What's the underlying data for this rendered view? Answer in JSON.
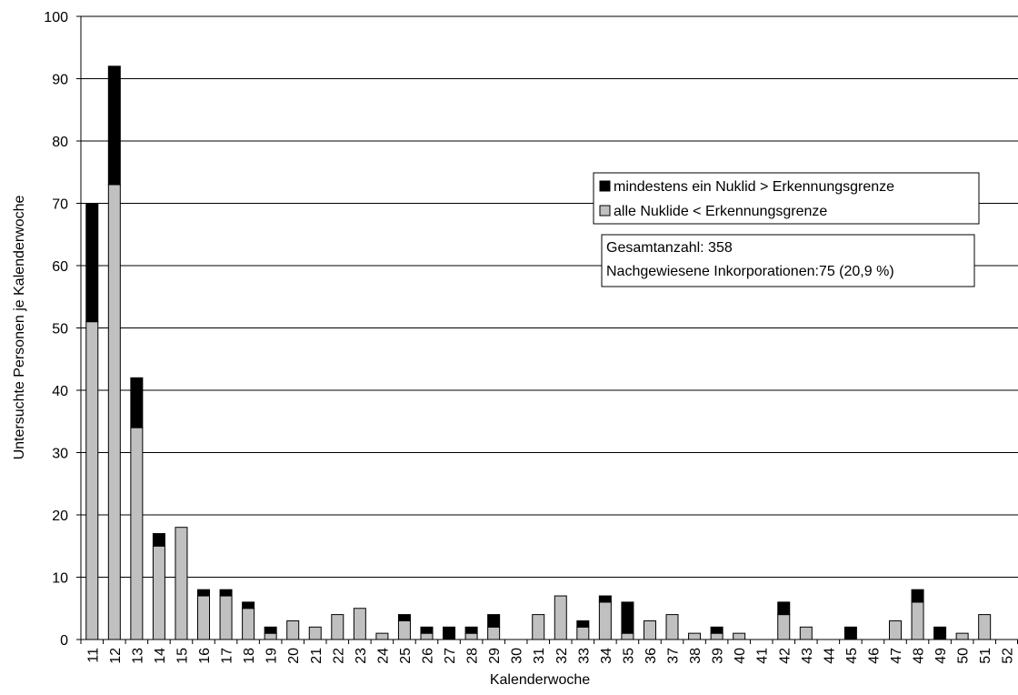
{
  "chart_data": {
    "type": "bar",
    "stacked": true,
    "xlabel": "Kalenderwoche",
    "ylabel": "Untersuchte Personen je Kalenderwoche",
    "ylim": [
      0,
      100
    ],
    "y_ticks": [
      "0",
      "10",
      "20",
      "30",
      "40",
      "50",
      "60",
      "70",
      "80",
      "90",
      "100"
    ],
    "grid": true,
    "categories": [
      "11",
      "12",
      "13",
      "14",
      "15",
      "16",
      "17",
      "18",
      "19",
      "20",
      "21",
      "22",
      "23",
      "24",
      "25",
      "26",
      "27",
      "28",
      "29",
      "30",
      "31",
      "32",
      "33",
      "34",
      "35",
      "36",
      "37",
      "38",
      "39",
      "40",
      "41",
      "42",
      "43",
      "44",
      "45",
      "46",
      "47",
      "48",
      "49",
      "50",
      "51",
      "52"
    ],
    "series": [
      {
        "name": "alle Nuklide < Erkennungsgrenze",
        "color": "#c0c0c0",
        "values": [
          51,
          73,
          34,
          15,
          18,
          7,
          7,
          5,
          1,
          3,
          2,
          4,
          5,
          1,
          3,
          1,
          0,
          1,
          2,
          0,
          4,
          7,
          2,
          6,
          1,
          3,
          4,
          1,
          1,
          1,
          0,
          4,
          2,
          0,
          0,
          0,
          3,
          6,
          0,
          1,
          4,
          0
        ]
      },
      {
        "name": "mindestens ein Nuklid > Erkennungsgrenze",
        "color": "#000000",
        "values": [
          19,
          19,
          8,
          2,
          0,
          1,
          1,
          1,
          1,
          0,
          0,
          0,
          0,
          0,
          1,
          1,
          2,
          1,
          2,
          0,
          0,
          0,
          1,
          1,
          5,
          0,
          0,
          0,
          1,
          0,
          0,
          2,
          0,
          0,
          2,
          0,
          0,
          2,
          2,
          0,
          0,
          0
        ]
      }
    ],
    "legend": {
      "position": "top-right",
      "entries": [
        {
          "label": "mindestens ein Nuklid > Erkennungsgrenze",
          "color": "#000000"
        },
        {
          "label": "alle Nuklide < Erkennungsgrenze",
          "color": "#c0c0c0"
        }
      ]
    },
    "annotations": [
      "Gesamtanzahl: 358",
      "Nachgewiesene Inkorporationen:75 (20,9 %)"
    ]
  }
}
